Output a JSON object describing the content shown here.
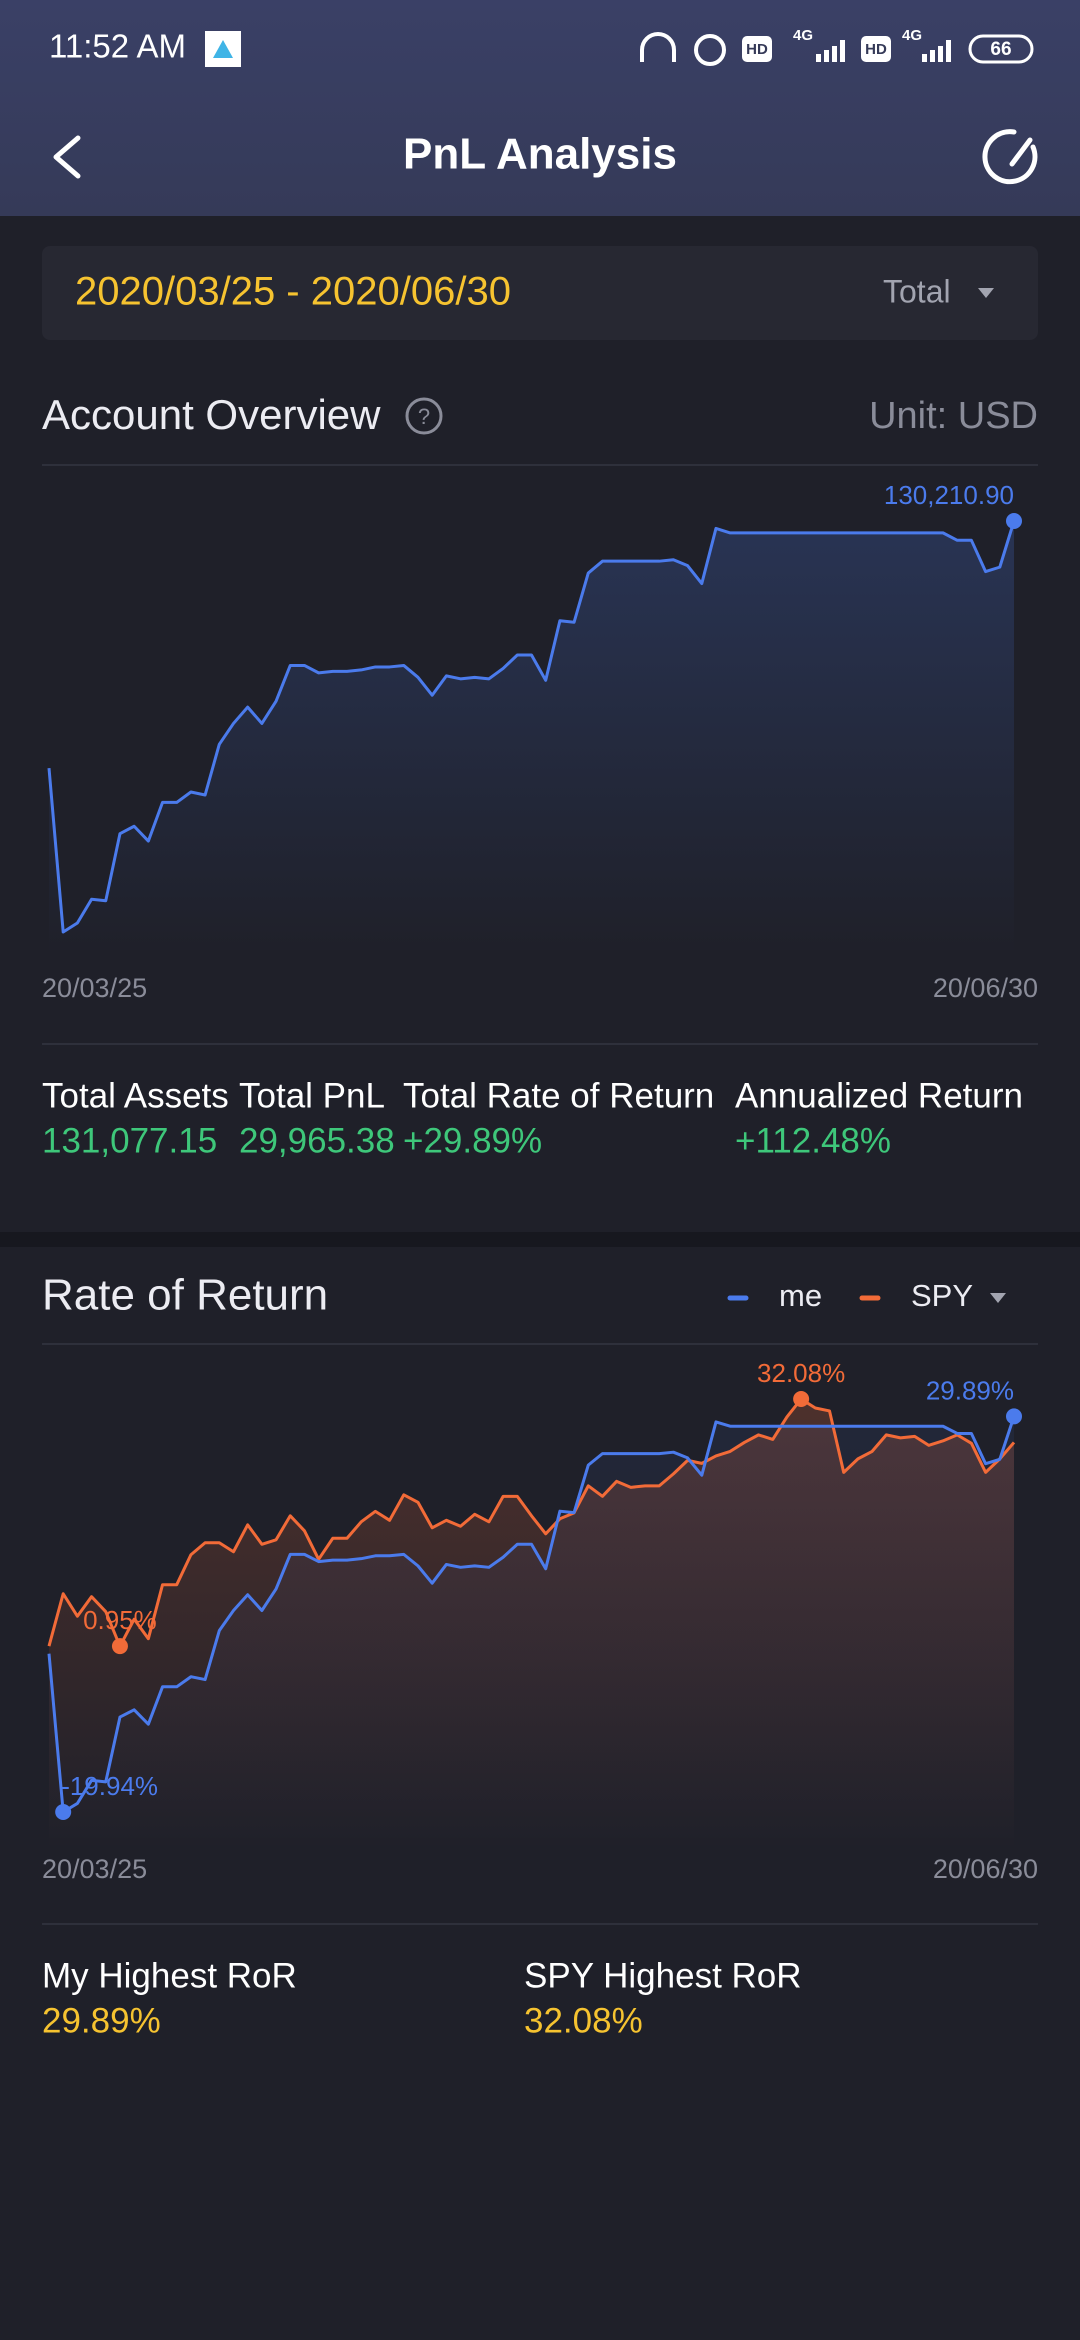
{
  "status_bar": {
    "time": "11:52 AM",
    "hd_1": "HD",
    "network_1": "4G",
    "hd_2": "HD",
    "network_2": "4G",
    "battery": "66"
  },
  "header": {
    "title": "PnL Analysis"
  },
  "filter": {
    "date_range": "2020/03/25 - 2020/06/30",
    "scope": "Total"
  },
  "account_overview": {
    "title": "Account Overview",
    "unit": "Unit: USD",
    "stats": [
      {
        "label": "Total Assets",
        "value": "131,077.15"
      },
      {
        "label": "Total  PnL",
        "value": "29,965.38"
      },
      {
        "label": "Total  Rate of Return",
        "value": "+29.89%"
      },
      {
        "label": "Annualized Return",
        "value": "+112.48%"
      }
    ]
  },
  "rate_of_return": {
    "title": "Rate of Return",
    "summary": [
      {
        "label": "My Highest RoR",
        "value": "29.89%"
      },
      {
        "label": "SPY Highest RoR",
        "value": "32.08%"
      }
    ]
  },
  "chart_data": [
    {
      "type": "line",
      "categories": [
        "20/03/25",
        null,
        null,
        null,
        null,
        null,
        null,
        null,
        null,
        null,
        null,
        null,
        null,
        null,
        null,
        null,
        null,
        null,
        null,
        null,
        null,
        null,
        null,
        null,
        null,
        null,
        null,
        null,
        null,
        null,
        null,
        null,
        null,
        null,
        null,
        null,
        null,
        null,
        null,
        null,
        null,
        null,
        null,
        null,
        null,
        null,
        null,
        null,
        null,
        null,
        null,
        null,
        null,
        null,
        null,
        null,
        null,
        null,
        null,
        null,
        null,
        null,
        null,
        null,
        null,
        null,
        null,
        null,
        "20/06/30"
      ],
      "series": [
        {
          "color": "#4b7bec",
          "values": [
            100250,
            80390,
            81480,
            84360,
            84180,
            92310,
            93210,
            91410,
            96100,
            96100,
            97360,
            97000,
            103140,
            105670,
            107650,
            105670,
            108370,
            112700,
            112700,
            111800,
            111980,
            111980,
            112160,
            112520,
            112520,
            112700,
            111260,
            109090,
            111440,
            111080,
            111260,
            111080,
            112340,
            113970,
            113970,
            110900,
            118120,
            117940,
            123900,
            125340,
            125340,
            125340,
            125340,
            125340,
            125520,
            124800,
            122630,
            129310,
            128770,
            128770,
            128770,
            128770,
            128770,
            128770,
            128770,
            128770,
            128770,
            128770,
            128770,
            128770,
            128770,
            128770,
            128770,
            128770,
            127870,
            127870,
            124080,
            124620,
            130210.9
          ],
          "value_labels": [
            null,
            null,
            null,
            null,
            null,
            null,
            null,
            null,
            null,
            null,
            null,
            null,
            null,
            null,
            null,
            null,
            null,
            null,
            null,
            null,
            null,
            null,
            null,
            null,
            null,
            null,
            null,
            null,
            null,
            null,
            null,
            null,
            null,
            null,
            null,
            null,
            null,
            null,
            null,
            null,
            null,
            null,
            null,
            null,
            null,
            null,
            null,
            null,
            null,
            null,
            null,
            null,
            null,
            null,
            null,
            null,
            null,
            null,
            null,
            null,
            null,
            null,
            null,
            null,
            null,
            null,
            null,
            null,
            "130,210.90"
          ]
        }
      ]
    },
    {
      "type": "line",
      "categories": [
        "20/03/25",
        null,
        null,
        null,
        null,
        null,
        null,
        null,
        null,
        null,
        null,
        null,
        null,
        null,
        null,
        null,
        null,
        null,
        null,
        null,
        null,
        null,
        null,
        null,
        null,
        null,
        null,
        null,
        null,
        null,
        null,
        null,
        null,
        null,
        null,
        null,
        null,
        null,
        null,
        null,
        null,
        null,
        null,
        null,
        null,
        null,
        null,
        null,
        null,
        null,
        null,
        null,
        null,
        null,
        null,
        null,
        null,
        null,
        null,
        null,
        null,
        null,
        null,
        null,
        null,
        null,
        null,
        null,
        "20/06/30"
      ],
      "series": [
        {
          "name": "me",
          "color": "#4b7bec",
          "values": [
            0,
            -19.94,
            -18.86,
            -15.95,
            -16.14,
            -7.98,
            -7.07,
            -8.88,
            -4.17,
            -4.17,
            -2.9,
            -3.26,
            2.9,
            5.44,
            7.43,
            5.44,
            8.16,
            12.51,
            12.51,
            11.6,
            11.78,
            11.78,
            11.97,
            12.33,
            12.33,
            12.51,
            11.06,
            8.88,
            11.24,
            10.88,
            11.06,
            10.88,
            12.15,
            13.78,
            13.78,
            10.7,
            17.95,
            17.77,
            23.75,
            25.2,
            25.2,
            25.2,
            25.2,
            25.2,
            25.38,
            24.66,
            22.48,
            29.19,
            28.65,
            28.65,
            28.65,
            28.65,
            28.65,
            28.65,
            28.65,
            28.65,
            28.65,
            28.65,
            28.65,
            28.65,
            28.65,
            28.65,
            28.65,
            28.65,
            27.74,
            27.74,
            23.93,
            24.48,
            29.89
          ],
          "value_labels": [
            null,
            "-19.94%",
            null,
            null,
            null,
            null,
            null,
            null,
            null,
            null,
            null,
            null,
            null,
            null,
            null,
            null,
            null,
            null,
            null,
            null,
            null,
            null,
            null,
            null,
            null,
            null,
            null,
            null,
            null,
            null,
            null,
            null,
            null,
            null,
            null,
            null,
            null,
            null,
            null,
            null,
            null,
            null,
            null,
            null,
            null,
            null,
            null,
            null,
            null,
            null,
            null,
            null,
            null,
            null,
            null,
            null,
            null,
            null,
            null,
            null,
            null,
            null,
            null,
            null,
            null,
            null,
            null,
            null,
            "29.89%"
          ]
        },
        {
          "name": "SPY",
          "color": "#f26b38",
          "values": [
            0.95,
            7.55,
            4.72,
            7.18,
            5.29,
            0.95,
            4.35,
            1.89,
            8.69,
            8.69,
            12.46,
            13.97,
            13.97,
            12.84,
            16.23,
            13.78,
            14.35,
            17.37,
            15.48,
            11.89,
            14.54,
            14.54,
            16.61,
            17.93,
            16.8,
            20.01,
            19.07,
            15.86,
            16.8,
            16.05,
            17.56,
            16.61,
            19.82,
            19.82,
            17.37,
            15.1,
            16.99,
            17.74,
            21.14,
            19.82,
            21.71,
            20.95,
            21.14,
            21.14,
            22.65,
            24.35,
            23.97,
            24.91,
            25.48,
            26.61,
            27.56,
            26.99,
            29.82,
            32.08,
            30.95,
            30.58,
            22.84,
            24.54,
            25.48,
            27.56,
            27.18,
            27.37,
            26.24,
            26.81,
            27.56,
            26.5,
            22.84,
            24.54,
            26.61
          ],
          "value_labels": [
            null,
            null,
            null,
            null,
            null,
            "0.95%",
            null,
            null,
            null,
            null,
            null,
            null,
            null,
            null,
            null,
            null,
            null,
            null,
            null,
            null,
            null,
            null,
            null,
            null,
            null,
            null,
            null,
            null,
            null,
            null,
            null,
            null,
            null,
            null,
            null,
            null,
            null,
            null,
            null,
            null,
            null,
            null,
            null,
            null,
            null,
            null,
            null,
            null,
            null,
            null,
            null,
            null,
            null,
            "32.08%",
            null,
            null,
            null,
            null,
            null,
            null,
            null,
            null,
            null,
            null,
            null,
            null,
            null,
            null,
            null
          ]
        }
      ],
      "legend": "top-right"
    }
  ]
}
